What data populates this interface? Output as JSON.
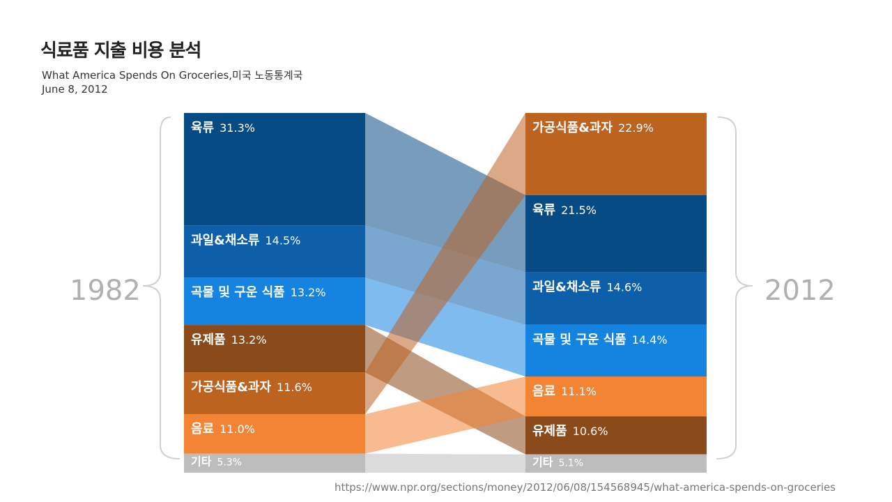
{
  "title": "식료품 지출 비용 분석",
  "subtitle": "What America Spends On Groceries,미국 노동통계국",
  "date": "June 8, 2012",
  "source": "https://www.npr.org/sections/money/2012/06/08/154568945/what-america-spends-on-groceries",
  "chart_data": {
    "type": "bar",
    "left_year": "1982",
    "right_year": "2012",
    "left_stack": [
      {
        "key": "meat",
        "name": "육류",
        "pct_label": "31.3%",
        "value": 31.3
      },
      {
        "key": "fruit",
        "name": "과일&채소류",
        "pct_label": "14.5%",
        "value": 14.5
      },
      {
        "key": "grain",
        "name": "곡물 및 구운 식품",
        "pct_label": "13.2%",
        "value": 13.2
      },
      {
        "key": "dairy",
        "name": "유제품",
        "pct_label": "13.2%",
        "value": 13.2
      },
      {
        "key": "processed",
        "name": "가공식품&과자",
        "pct_label": "11.6%",
        "value": 11.6
      },
      {
        "key": "drinks",
        "name": "음료",
        "pct_label": "11.0%",
        "value": 11.0
      },
      {
        "key": "other",
        "name": "기타",
        "pct_label": "5.3%",
        "value": 5.3
      }
    ],
    "right_stack": [
      {
        "key": "processed",
        "name": "가공식품&과자",
        "pct_label": "22.9%",
        "value": 22.9
      },
      {
        "key": "meat",
        "name": "육류",
        "pct_label": "21.5%",
        "value": 21.5
      },
      {
        "key": "fruit",
        "name": "과일&채소류",
        "pct_label": "14.6%",
        "value": 14.6
      },
      {
        "key": "grain",
        "name": "곡물 및 구운 식품",
        "pct_label": "14.4%",
        "value": 14.4
      },
      {
        "key": "drinks",
        "name": "음료",
        "pct_label": "11.1%",
        "value": 11.1
      },
      {
        "key": "dairy",
        "name": "유제품",
        "pct_label": "10.6%",
        "value": 10.6
      },
      {
        "key": "other",
        "name": "기타",
        "pct_label": "5.1%",
        "value": 5.1
      }
    ],
    "colors": {
      "meat": "#074b85",
      "fruit": "#0c5fa8",
      "grain": "#1484e0",
      "dairy": "#8a4a19",
      "processed": "#bd6320",
      "drinks": "#f28433",
      "other": "#bdbdbd"
    }
  }
}
